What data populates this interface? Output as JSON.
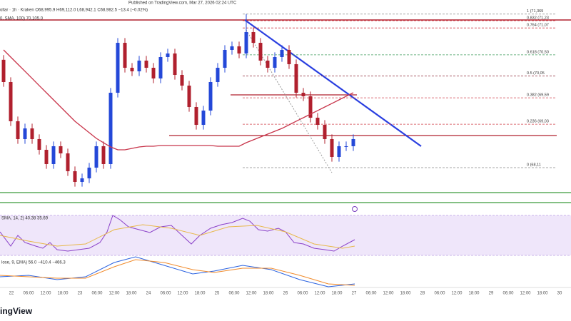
{
  "chart_data": {
    "type": "candlestick",
    "published": "Published on TradingView.com, Mar 27, 2026 02:24 UTC",
    "header": "ollar · 1h · Kraken  O68,995.9  H69,112.0  L68,942.1  C68,982.5  −13.4 (−0.02%)",
    "sma_label": "0, SMA, 100)  70,105.0",
    "rsi_label": "SMA, 14, 2)  40.38  35.69",
    "macd_label": "lose, 9, EMA)  56.0  −410.4  −466.3",
    "logo": "ingView",
    "ylim": [
      67284,
      71667
    ],
    "up_color": "#2448d8",
    "down_color": "#b0202e",
    "sma_color": "#c8344a",
    "open": [
      70400,
      69929,
      69098,
      68720,
      68946,
      68720,
      68493,
      68191,
      68569,
      68417,
      68039,
      67813,
      67888,
      68115,
      68569,
      68191,
      69702,
      70760,
      70231,
      70156,
      70383,
      70231,
      70005,
      70458,
      70534,
      70080,
      69853,
      69400,
      69022,
      69324,
      69929,
      70231,
      70609,
      70685,
      70534,
      70987,
      70760,
      70383,
      70231,
      70458,
      70609,
      70307,
      69702,
      69627,
      69173,
      69022,
      68720,
      68342,
      68569,
      68569
    ],
    "high": [
      70500,
      70029,
      69198,
      69046,
      69046,
      68820,
      68593,
      68669,
      68669,
      68517,
      68139,
      67988,
      68215,
      68669,
      68669,
      69802,
      70860,
      70860,
      70331,
      70483,
      70483,
      70331,
      70558,
      70634,
      70634,
      70180,
      69953,
      69500,
      69424,
      70029,
      70331,
      70709,
      70785,
      70785,
      71369,
      71087,
      70860,
      70483,
      70558,
      70709,
      70709,
      70407,
      69802,
      69727,
      69273,
      69122,
      68820,
      68669,
      68669,
      68820
    ],
    "low": [
      69829,
      68998,
      68620,
      68620,
      68620,
      68393,
      68091,
      68091,
      68317,
      67939,
      67713,
      67713,
      67788,
      68015,
      68091,
      68091,
      69602,
      70131,
      70056,
      70056,
      70131,
      69905,
      69905,
      70358,
      69980,
      69753,
      69300,
      68922,
      68922,
      69224,
      69829,
      70131,
      70509,
      70434,
      70434,
      70660,
      70283,
      70131,
      70131,
      70358,
      70207,
      69602,
      69527,
      69073,
      68922,
      68620,
      68242,
      68242,
      68469,
      68469
    ],
    "close": [
      69929,
      69098,
      68720,
      68946,
      68720,
      68493,
      68191,
      68569,
      68417,
      68039,
      67813,
      67888,
      68115,
      68569,
      68191,
      69702,
      70760,
      70231,
      70156,
      70383,
      70231,
      70005,
      70458,
      70534,
      70080,
      69853,
      69400,
      69022,
      69324,
      69929,
      70231,
      70609,
      70685,
      70534,
      70987,
      70760,
      70383,
      70231,
      70458,
      70609,
      70307,
      69702,
      69627,
      69173,
      69022,
      68720,
      68342,
      68569,
      68569,
      68720
    ],
    "sma": [
      70609,
      70458,
      70307,
      70156,
      70005,
      69853,
      69702,
      69551,
      69400,
      69249,
      69098,
      68977,
      68856,
      68735,
      68644,
      68553,
      68493,
      68493,
      68523,
      68553,
      68569,
      68569,
      68584,
      68584,
      68584,
      68584,
      68584,
      68584,
      68584,
      68584,
      68569,
      68569,
      68569,
      68569,
      68644,
      68705,
      68765,
      68825,
      68886,
      68946,
      69022,
      69098,
      69173,
      69249,
      69324,
      69400,
      69475,
      69551,
      69627,
      69702
    ],
    "fib_levels": [
      {
        "value": 71369,
        "label": "1 (71,369",
        "color": "#888888"
      },
      {
        "value": 71230,
        "label": "0.832 (71,23",
        "color": "#d0404a"
      },
      {
        "value": 71075,
        "label": "0.764 (71,07",
        "color": "#d0404a"
      },
      {
        "value": 70505,
        "label": "0.618 (70,50",
        "color": "#3a9a5a"
      },
      {
        "value": 70055,
        "label": "0.5 (70,05",
        "color": "#8a2030"
      },
      {
        "value": 69595,
        "label": "0.382 (69,59",
        "color": "#d0404a"
      },
      {
        "value": 69035,
        "label": "0.236 (69,03",
        "color": "#d0404a"
      },
      {
        "value": 68115,
        "label": "0 (68,11",
        "color": "#888888"
      }
    ],
    "time_labels": [
      "22",
      "06:00",
      "12:00",
      "18:00",
      "23",
      "06:00",
      "12:00",
      "18:00",
      "24",
      "06:00",
      "12:00",
      "18:00",
      "25",
      "06:00",
      "12:00",
      "18:00",
      "26",
      "06:00",
      "12:00",
      "18:00",
      "27",
      "06:00",
      "12:00",
      "18:00",
      "28",
      "06:00",
      "12:00",
      "18:00",
      "29",
      "06:00",
      "12:00",
      "18:00",
      "30",
      "06:00"
    ]
  }
}
